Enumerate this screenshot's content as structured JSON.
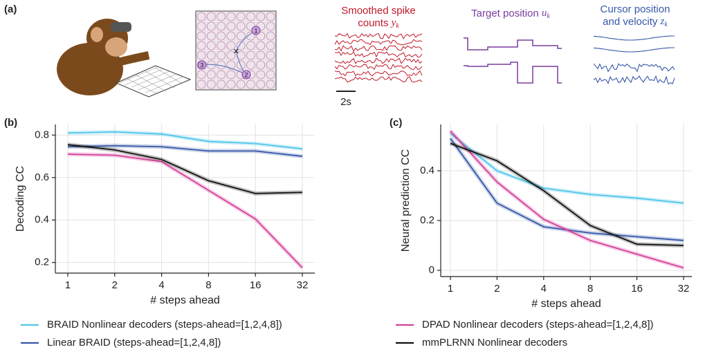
{
  "panel_a": {
    "label": "(a)",
    "targets": [
      "1",
      "2",
      "3"
    ],
    "scale_bar": "2s",
    "spike_label": {
      "lines": [
        "Smoothed spike",
        "counts"
      ],
      "symbol": "y",
      "sub": "k"
    },
    "target_label": {
      "lines": [
        "Target position"
      ],
      "symbol": "u",
      "sub": "k"
    },
    "cursor_label": {
      "lines": [
        "Cursor position",
        "and velocity"
      ],
      "symbol": "z",
      "sub": "k"
    }
  },
  "chart_data": [
    {
      "type": "line",
      "panel": "(b)",
      "x_label": "# steps ahead",
      "y_label": "Decoding CC",
      "categories": [
        "1",
        "2",
        "4",
        "8",
        "16",
        "32"
      ],
      "ylim": [
        0.15,
        0.85
      ],
      "yticks": [
        0.2,
        0.4,
        0.6,
        0.8
      ],
      "grid": true,
      "series": [
        {
          "name": "BRAID Nonlinear decoders  (steps-ahead=[1,2,4,8])",
          "color": "#4fc6ea",
          "values": [
            0.81,
            0.815,
            0.805,
            0.77,
            0.76,
            0.735
          ]
        },
        {
          "name": "Linear BRAID (steps-ahead=[1,2,4,8])",
          "color": "#3658a8",
          "values": [
            0.745,
            0.75,
            0.745,
            0.725,
            0.725,
            0.7
          ]
        },
        {
          "name": "DPAD Nonlinear decoders (steps-ahead=[1,2,4,8])",
          "color": "#d6409a",
          "values": [
            0.71,
            0.705,
            0.675,
            0.54,
            0.405,
            0.175
          ]
        },
        {
          "name": "mmPLRNN Nonlinear decoders",
          "color": "#111111",
          "values": [
            0.755,
            0.73,
            0.685,
            0.585,
            0.525,
            0.53
          ]
        }
      ]
    },
    {
      "type": "line",
      "panel": "(c)",
      "x_label": "# steps ahead",
      "y_label": "Neural prediction CC",
      "categories": [
        "1",
        "2",
        "4",
        "8",
        "16",
        "32"
      ],
      "ylim": [
        -0.025,
        0.586
      ],
      "yticks": [
        0,
        0.2,
        0.4
      ],
      "grid": true,
      "series": [
        {
          "color": "#4fc6ea",
          "values": [
            0.55,
            0.4,
            0.33,
            0.305,
            0.29,
            0.27
          ]
        },
        {
          "color": "#3658a8",
          "values": [
            0.53,
            0.27,
            0.175,
            0.15,
            0.135,
            0.12
          ]
        },
        {
          "color": "#d6409a",
          "values": [
            0.56,
            0.355,
            0.205,
            0.12,
            0.065,
            0.01
          ]
        },
        {
          "color": "#111111",
          "values": [
            0.51,
            0.44,
            0.32,
            0.18,
            0.105,
            0.1
          ]
        }
      ]
    }
  ]
}
